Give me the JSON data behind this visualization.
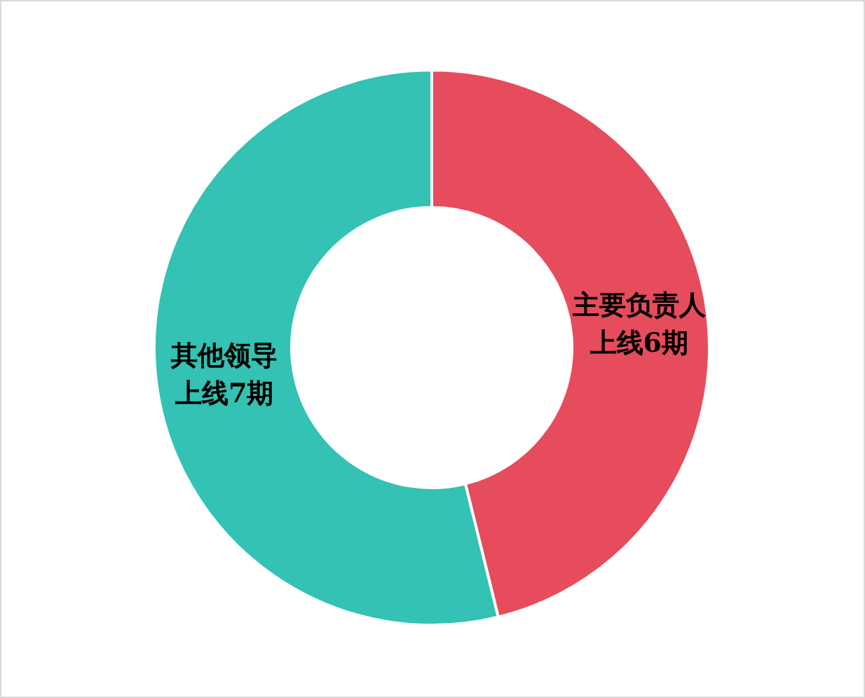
{
  "chart_data": {
    "type": "donut",
    "categories": [
      "主要负责人",
      "其他领导"
    ],
    "values": [
      6,
      7
    ],
    "colors": [
      "#e64c5c",
      "#33c2b4"
    ],
    "value_labels": [
      "上线6期",
      "上线7期"
    ]
  }
}
